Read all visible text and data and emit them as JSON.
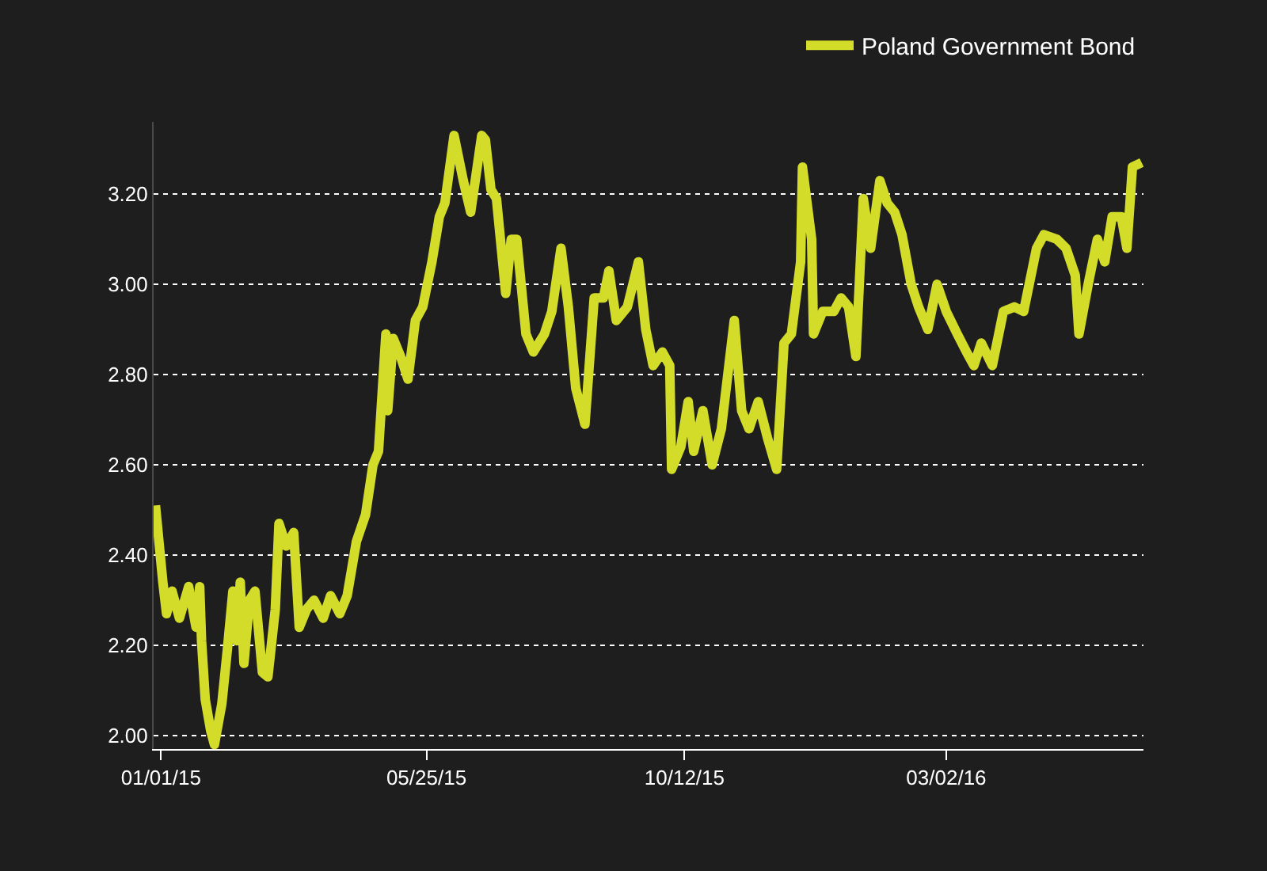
{
  "chart_data": {
    "type": "line",
    "legend": "top right",
    "grid": "y",
    "xlim": [
      "2014-12-28",
      "2016-06-17"
    ],
    "ylim": [
      1.97,
      3.36
    ],
    "xticks": [
      {
        "value": "2015-01-01",
        "label": "01/01/15"
      },
      {
        "value": "2015-05-25",
        "label": "05/25/15"
      },
      {
        "value": "2015-10-12",
        "label": "10/12/15"
      },
      {
        "value": "2016-03-02",
        "label": "03/02/16"
      }
    ],
    "yticks": [
      {
        "value": 2.0,
        "label": "2.00"
      },
      {
        "value": 2.2,
        "label": "2.20"
      },
      {
        "value": 2.4,
        "label": "2.40"
      },
      {
        "value": 2.6,
        "label": "2.60"
      },
      {
        "value": 2.8,
        "label": "2.80"
      },
      {
        "value": 3.0,
        "label": "3.00"
      },
      {
        "value": 3.2,
        "label": "3.20"
      }
    ],
    "x": [
      "2014-12-29",
      "2015-01-02",
      "2015-01-04",
      "2015-01-07",
      "2015-01-11",
      "2015-01-16",
      "2015-01-20",
      "2015-01-22",
      "2015-01-23",
      "2015-01-25",
      "2015-01-28",
      "2015-01-30",
      "2015-02-03",
      "2015-02-06",
      "2015-02-09",
      "2015-02-11",
      "2015-02-13",
      "2015-02-15",
      "2015-02-18",
      "2015-02-21",
      "2015-02-25",
      "2015-02-28",
      "2015-03-04",
      "2015-03-06",
      "2015-03-10",
      "2015-03-14",
      "2015-03-17",
      "2015-03-21",
      "2015-03-25",
      "2015-03-30",
      "2015-04-03",
      "2015-04-08",
      "2015-04-12",
      "2015-04-17",
      "2015-04-22",
      "2015-04-26",
      "2015-04-29",
      "2015-05-03",
      "2015-05-04",
      "2015-05-07",
      "2015-05-11",
      "2015-05-15",
      "2015-05-19",
      "2015-05-23",
      "2015-05-28",
      "2015-06-01",
      "2015-06-04",
      "2015-06-09",
      "2015-06-14",
      "2015-06-18",
      "2015-06-24",
      "2015-06-26",
      "2015-06-29",
      "2015-07-02",
      "2015-07-07",
      "2015-07-10",
      "2015-07-13",
      "2015-07-18",
      "2015-07-22",
      "2015-07-28",
      "2015-08-01",
      "2015-08-06",
      "2015-08-10",
      "2015-08-14",
      "2015-08-19",
      "2015-08-24",
      "2015-08-29",
      "2015-09-01",
      "2015-09-05",
      "2015-09-11",
      "2015-09-17",
      "2015-09-21",
      "2015-09-25",
      "2015-09-30",
      "2015-10-04",
      "2015-10-05",
      "2015-10-10",
      "2015-10-14",
      "2015-10-17",
      "2015-10-22",
      "2015-10-27",
      "2015-11-01",
      "2015-11-08",
      "2015-11-12",
      "2015-11-16",
      "2015-11-21",
      "2015-11-26",
      "2015-12-01",
      "2015-12-05",
      "2015-12-09",
      "2015-12-14",
      "2015-12-15",
      "2015-12-20",
      "2015-12-21",
      "2015-12-26",
      "2016-01-01",
      "2016-01-05",
      "2016-01-09",
      "2016-01-13",
      "2016-01-17",
      "2016-01-21",
      "2016-01-26",
      "2016-01-30",
      "2016-02-03",
      "2016-02-07",
      "2016-02-12",
      "2016-02-16",
      "2016-02-21",
      "2016-02-26",
      "2016-03-02",
      "2016-03-08",
      "2016-03-13",
      "2016-03-17",
      "2016-03-21",
      "2016-03-27",
      "2016-04-02",
      "2016-04-08",
      "2016-04-13",
      "2016-04-20",
      "2016-04-24",
      "2016-05-01",
      "2016-05-06",
      "2016-05-11",
      "2016-05-13",
      "2016-05-18",
      "2016-05-23",
      "2016-05-27",
      "2016-05-31",
      "2016-06-05",
      "2016-06-08",
      "2016-06-11",
      "2016-06-16"
    ],
    "series": [
      {
        "name": "Poland Government Bond",
        "color": "#d4dc2a",
        "values": [
          2.51,
          2.34,
          2.27,
          2.32,
          2.26,
          2.33,
          2.24,
          2.33,
          2.21,
          2.08,
          2.01,
          1.98,
          2.07,
          2.19,
          2.32,
          2.21,
          2.34,
          2.16,
          2.3,
          2.32,
          2.14,
          2.13,
          2.28,
          2.47,
          2.42,
          2.45,
          2.24,
          2.28,
          2.3,
          2.26,
          2.31,
          2.27,
          2.31,
          2.43,
          2.49,
          2.6,
          2.63,
          2.89,
          2.72,
          2.88,
          2.84,
          2.79,
          2.92,
          2.95,
          3.05,
          3.15,
          3.18,
          3.33,
          3.23,
          3.16,
          3.33,
          3.32,
          3.21,
          3.19,
          2.98,
          3.1,
          3.1,
          2.89,
          2.85,
          2.89,
          2.94,
          3.08,
          2.95,
          2.77,
          2.69,
          2.97,
          2.97,
          3.03,
          2.92,
          2.95,
          3.05,
          2.9,
          2.82,
          2.85,
          2.82,
          2.59,
          2.64,
          2.74,
          2.63,
          2.72,
          2.6,
          2.68,
          2.92,
          2.72,
          2.68,
          2.74,
          2.66,
          2.59,
          2.87,
          2.89,
          3.05,
          3.26,
          3.1,
          2.89,
          2.94,
          2.94,
          2.97,
          2.95,
          2.84,
          3.19,
          3.08,
          3.23,
          3.18,
          3.16,
          3.11,
          3.0,
          2.95,
          2.9,
          3.0,
          2.94,
          2.89,
          2.85,
          2.82,
          2.87,
          2.82,
          2.94,
          2.95,
          2.94,
          3.08,
          3.11,
          3.1,
          3.08,
          3.02,
          2.89,
          3.0,
          3.1,
          3.05,
          3.15,
          3.15,
          3.08,
          3.26,
          3.27
        ]
      }
    ]
  }
}
